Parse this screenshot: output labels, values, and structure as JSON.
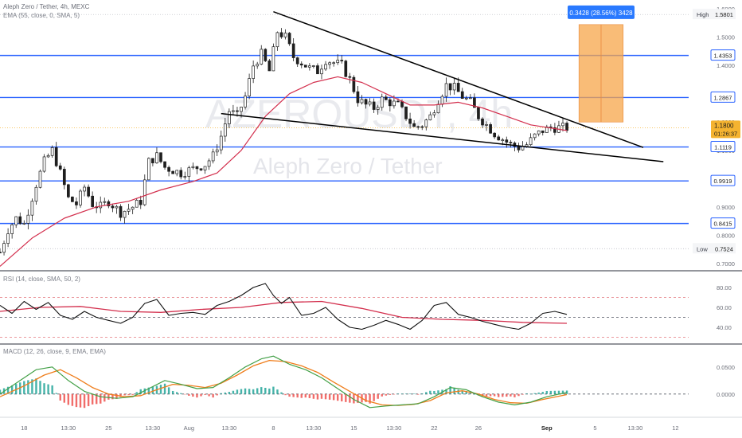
{
  "header": {
    "symbol_line": "Aleph Zero / Tether, 4h, MEXC",
    "ema_line": "EMA (55, close, 0, SMA, 5)",
    "rsi_line": "RSI (14, close, SMA, 50, 2)",
    "macd_line": "MACD (12, 26, close, 9, EMA, EMA)"
  },
  "watermark": {
    "ticker": "AZEROUSDT, 4h",
    "name": "Aleph Zero / Tether"
  },
  "colors": {
    "candle": "#1f1f1f",
    "ema": "#d32f4d",
    "levels": "#2962ff",
    "trendlines": "#000000",
    "target_box": "#f7a54a",
    "price_tag": "#f5b330",
    "macd_line": "#43a047",
    "signal_line": "#ef7d1b",
    "hist_up": "#26a69a",
    "hist_down": "#ef5350"
  },
  "chart_data": [
    {
      "type": "candlestick",
      "title": "Aleph Zero / Tether, 4h, MEXC",
      "x_ticks": [
        "18",
        "13:30",
        "25",
        "13:30",
        "Aug",
        "13:30",
        "8",
        "13:30",
        "15",
        "13:30",
        "22",
        "26",
        "Sep",
        "5",
        "13:30",
        "12"
      ],
      "y_ticks": [
        0.7,
        0.8,
        0.9,
        1.0,
        1.1,
        1.2,
        1.3,
        1.4,
        1.5,
        1.6
      ],
      "ylim": [
        0.68,
        1.62
      ],
      "grid": false,
      "close_path": [
        {
          "d": 0,
          "v": 0.74
        },
        {
          "d": 2,
          "v": 0.82
        },
        {
          "d": 4,
          "v": 0.86
        },
        {
          "d": 6,
          "v": 0.84
        },
        {
          "d": 9,
          "v": 0.98
        },
        {
          "d": 11,
          "v": 1.06
        },
        {
          "d": 13,
          "v": 1.1
        },
        {
          "d": 15,
          "v": 1.02
        },
        {
          "d": 17,
          "v": 0.93
        },
        {
          "d": 19,
          "v": 0.91
        },
        {
          "d": 21,
          "v": 0.97
        },
        {
          "d": 23,
          "v": 0.91
        },
        {
          "d": 25,
          "v": 0.9
        },
        {
          "d": 27,
          "v": 0.92
        },
        {
          "d": 30,
          "v": 0.88
        },
        {
          "d": 33,
          "v": 0.9
        },
        {
          "d": 35,
          "v": 0.92
        },
        {
          "d": 37,
          "v": 1.06
        },
        {
          "d": 39,
          "v": 1.08
        },
        {
          "d": 41,
          "v": 1.04
        },
        {
          "d": 43,
          "v": 1.03
        },
        {
          "d": 45,
          "v": 1.02
        },
        {
          "d": 47,
          "v": 1.03
        },
        {
          "d": 49,
          "v": 1.04
        },
        {
          "d": 51,
          "v": 1.05
        },
        {
          "d": 53,
          "v": 1.08
        },
        {
          "d": 55,
          "v": 1.15
        },
        {
          "d": 57,
          "v": 1.24
        },
        {
          "d": 59,
          "v": 1.22
        },
        {
          "d": 61,
          "v": 1.29
        },
        {
          "d": 63,
          "v": 1.4
        },
        {
          "d": 65,
          "v": 1.44
        },
        {
          "d": 67,
          "v": 1.38
        },
        {
          "d": 69,
          "v": 1.52
        },
        {
          "d": 71,
          "v": 1.5
        },
        {
          "d": 73,
          "v": 1.43
        },
        {
          "d": 75,
          "v": 1.41
        },
        {
          "d": 77,
          "v": 1.39
        },
        {
          "d": 79,
          "v": 1.38
        },
        {
          "d": 81,
          "v": 1.42
        },
        {
          "d": 83,
          "v": 1.41
        },
        {
          "d": 85,
          "v": 1.4
        },
        {
          "d": 87,
          "v": 1.35
        },
        {
          "d": 89,
          "v": 1.28
        },
        {
          "d": 91,
          "v": 1.26
        },
        {
          "d": 93,
          "v": 1.25
        },
        {
          "d": 95,
          "v": 1.28
        },
        {
          "d": 97,
          "v": 1.27
        },
        {
          "d": 99,
          "v": 1.26
        },
        {
          "d": 101,
          "v": 1.22
        },
        {
          "d": 103,
          "v": 1.18
        },
        {
          "d": 105,
          "v": 1.19
        },
        {
          "d": 107,
          "v": 1.22
        },
        {
          "d": 109,
          "v": 1.28
        },
        {
          "d": 111,
          "v": 1.33
        },
        {
          "d": 113,
          "v": 1.32
        },
        {
          "d": 115,
          "v": 1.29
        },
        {
          "d": 117,
          "v": 1.27
        },
        {
          "d": 119,
          "v": 1.22
        },
        {
          "d": 121,
          "v": 1.19
        },
        {
          "d": 123,
          "v": 1.16
        },
        {
          "d": 125,
          "v": 1.14
        },
        {
          "d": 127,
          "v": 1.12
        },
        {
          "d": 129,
          "v": 1.11
        },
        {
          "d": 131,
          "v": 1.12
        },
        {
          "d": 133,
          "v": 1.15
        },
        {
          "d": 135,
          "v": 1.17
        },
        {
          "d": 137,
          "v": 1.18
        },
        {
          "d": 139,
          "v": 1.18
        },
        {
          "d": 141,
          "v": 1.18
        }
      ],
      "ema55_path": [
        {
          "d": 0,
          "v": 0.69
        },
        {
          "d": 8,
          "v": 0.79
        },
        {
          "d": 16,
          "v": 0.86
        },
        {
          "d": 24,
          "v": 0.9
        },
        {
          "d": 32,
          "v": 0.92
        },
        {
          "d": 40,
          "v": 0.96
        },
        {
          "d": 48,
          "v": 0.99
        },
        {
          "d": 54,
          "v": 1.02
        },
        {
          "d": 60,
          "v": 1.1
        },
        {
          "d": 66,
          "v": 1.22
        },
        {
          "d": 72,
          "v": 1.3
        },
        {
          "d": 78,
          "v": 1.34
        },
        {
          "d": 84,
          "v": 1.36
        },
        {
          "d": 90,
          "v": 1.34
        },
        {
          "d": 96,
          "v": 1.3
        },
        {
          "d": 102,
          "v": 1.26
        },
        {
          "d": 108,
          "v": 1.26
        },
        {
          "d": 114,
          "v": 1.27
        },
        {
          "d": 120,
          "v": 1.25
        },
        {
          "d": 126,
          "v": 1.22
        },
        {
          "d": 132,
          "v": 1.19
        },
        {
          "d": 141,
          "v": 1.17
        }
      ],
      "horizontal_levels": [
        1.4353,
        1.2867,
        1.1119,
        0.9919,
        0.8415
      ],
      "trendlines": [
        {
          "from": {
            "d": 68,
            "v": 1.59
          },
          "to": {
            "d": 160,
            "v": 1.11
          }
        },
        {
          "from": {
            "d": 55,
            "v": 1.23
          },
          "to": {
            "d": 165,
            "v": 1.06
          }
        }
      ],
      "target_box": {
        "from": {
          "d": 144,
          "v": 1.2
        },
        "to": {
          "d": 155,
          "v": 1.5444
        },
        "label": "0.3428 (28.56%) 3428"
      },
      "markers": [
        {
          "label": "High",
          "value": "1.5801"
        },
        {
          "label": "Low",
          "value": "0.7524"
        }
      ],
      "level_labels": [
        "1.4353",
        "1.2867",
        "1.1119",
        "0.9919",
        "0.8415"
      ],
      "last_price": {
        "value": "1.1800",
        "countdown": "01:26:37"
      }
    },
    {
      "type": "line",
      "title": "RSI (14, close, SMA, 50, 2)",
      "y_ticks": [
        40.0,
        60.0,
        80.0
      ],
      "ylim": [
        28,
        92
      ],
      "bands": [
        70,
        50,
        30
      ],
      "series": [
        {
          "values": [
            {
              "d": 0,
              "v": 62
            },
            {
              "d": 3,
              "v": 54
            },
            {
              "d": 6,
              "v": 66
            },
            {
              "d": 9,
              "v": 58
            },
            {
              "d": 12,
              "v": 65
            },
            {
              "d": 15,
              "v": 52
            },
            {
              "d": 18,
              "v": 48
            },
            {
              "d": 21,
              "v": 56
            },
            {
              "d": 24,
              "v": 50
            },
            {
              "d": 27,
              "v": 47
            },
            {
              "d": 30,
              "v": 44
            },
            {
              "d": 33,
              "v": 50
            },
            {
              "d": 36,
              "v": 64
            },
            {
              "d": 39,
              "v": 68
            },
            {
              "d": 42,
              "v": 52
            },
            {
              "d": 45,
              "v": 54
            },
            {
              "d": 48,
              "v": 55
            },
            {
              "d": 51,
              "v": 53
            },
            {
              "d": 54,
              "v": 62
            },
            {
              "d": 57,
              "v": 66
            },
            {
              "d": 60,
              "v": 72
            },
            {
              "d": 63,
              "v": 80
            },
            {
              "d": 66,
              "v": 84
            },
            {
              "d": 68,
              "v": 72
            },
            {
              "d": 70,
              "v": 64
            },
            {
              "d": 72,
              "v": 70
            },
            {
              "d": 75,
              "v": 52
            },
            {
              "d": 78,
              "v": 54
            },
            {
              "d": 81,
              "v": 60
            },
            {
              "d": 84,
              "v": 48
            },
            {
              "d": 87,
              "v": 40
            },
            {
              "d": 90,
              "v": 38
            },
            {
              "d": 93,
              "v": 42
            },
            {
              "d": 96,
              "v": 47
            },
            {
              "d": 99,
              "v": 43
            },
            {
              "d": 102,
              "v": 38
            },
            {
              "d": 105,
              "v": 47
            },
            {
              "d": 108,
              "v": 62
            },
            {
              "d": 111,
              "v": 65
            },
            {
              "d": 114,
              "v": 53
            },
            {
              "d": 117,
              "v": 50
            },
            {
              "d": 120,
              "v": 46
            },
            {
              "d": 123,
              "v": 43
            },
            {
              "d": 126,
              "v": 40
            },
            {
              "d": 129,
              "v": 38
            },
            {
              "d": 132,
              "v": 44
            },
            {
              "d": 135,
              "v": 54
            },
            {
              "d": 138,
              "v": 56
            },
            {
              "d": 141,
              "v": 53
            }
          ]
        },
        {
          "values": [
            {
              "d": 0,
              "v": 56
            },
            {
              "d": 10,
              "v": 60
            },
            {
              "d": 20,
              "v": 61
            },
            {
              "d": 30,
              "v": 56
            },
            {
              "d": 40,
              "v": 55
            },
            {
              "d": 50,
              "v": 58
            },
            {
              "d": 60,
              "v": 60
            },
            {
              "d": 70,
              "v": 65
            },
            {
              "d": 80,
              "v": 66
            },
            {
              "d": 90,
              "v": 59
            },
            {
              "d": 100,
              "v": 50
            },
            {
              "d": 110,
              "v": 48
            },
            {
              "d": 120,
              "v": 47
            },
            {
              "d": 130,
              "v": 45
            },
            {
              "d": 141,
              "v": 44
            }
          ]
        }
      ]
    },
    {
      "type": "line",
      "title": "MACD (12, 26, close, 9, EMA, EMA)",
      "y_ticks": [
        0.0,
        0.05
      ],
      "ylim": [
        -0.04,
        0.085
      ],
      "series": [
        {
          "values": [
            {
              "d": 0,
              "v": 0.0
            },
            {
              "d": 5,
              "v": 0.025
            },
            {
              "d": 9,
              "v": 0.045
            },
            {
              "d": 13,
              "v": 0.05
            },
            {
              "d": 17,
              "v": 0.025
            },
            {
              "d": 21,
              "v": 0.005
            },
            {
              "d": 25,
              "v": -0.005
            },
            {
              "d": 29,
              "v": -0.008
            },
            {
              "d": 33,
              "v": -0.005
            },
            {
              "d": 37,
              "v": 0.01
            },
            {
              "d": 41,
              "v": 0.025
            },
            {
              "d": 45,
              "v": 0.018
            },
            {
              "d": 49,
              "v": 0.01
            },
            {
              "d": 53,
              "v": 0.012
            },
            {
              "d": 57,
              "v": 0.03
            },
            {
              "d": 61,
              "v": 0.05
            },
            {
              "d": 65,
              "v": 0.065
            },
            {
              "d": 68,
              "v": 0.07
            },
            {
              "d": 72,
              "v": 0.055
            },
            {
              "d": 76,
              "v": 0.045
            },
            {
              "d": 80,
              "v": 0.03
            },
            {
              "d": 84,
              "v": 0.01
            },
            {
              "d": 88,
              "v": -0.01
            },
            {
              "d": 92,
              "v": -0.025
            },
            {
              "d": 96,
              "v": -0.022
            },
            {
              "d": 100,
              "v": -0.02
            },
            {
              "d": 104,
              "v": -0.018
            },
            {
              "d": 108,
              "v": -0.005
            },
            {
              "d": 112,
              "v": 0.012
            },
            {
              "d": 116,
              "v": 0.008
            },
            {
              "d": 120,
              "v": -0.005
            },
            {
              "d": 124,
              "v": -0.015
            },
            {
              "d": 128,
              "v": -0.02
            },
            {
              "d": 132,
              "v": -0.015
            },
            {
              "d": 136,
              "v": -0.005
            },
            {
              "d": 141,
              "v": 0.003
            }
          ]
        },
        {
          "values": [
            {
              "d": 0,
              "v": -0.005
            },
            {
              "d": 6,
              "v": 0.015
            },
            {
              "d": 11,
              "v": 0.035
            },
            {
              "d": 15,
              "v": 0.045
            },
            {
              "d": 19,
              "v": 0.03
            },
            {
              "d": 23,
              "v": 0.012
            },
            {
              "d": 27,
              "v": 0.0
            },
            {
              "d": 31,
              "v": -0.005
            },
            {
              "d": 35,
              "v": -0.003
            },
            {
              "d": 39,
              "v": 0.008
            },
            {
              "d": 43,
              "v": 0.018
            },
            {
              "d": 47,
              "v": 0.016
            },
            {
              "d": 51,
              "v": 0.012
            },
            {
              "d": 55,
              "v": 0.02
            },
            {
              "d": 59,
              "v": 0.035
            },
            {
              "d": 63,
              "v": 0.052
            },
            {
              "d": 67,
              "v": 0.062
            },
            {
              "d": 71,
              "v": 0.06
            },
            {
              "d": 75,
              "v": 0.052
            },
            {
              "d": 79,
              "v": 0.04
            },
            {
              "d": 83,
              "v": 0.022
            },
            {
              "d": 87,
              "v": 0.005
            },
            {
              "d": 91,
              "v": -0.012
            },
            {
              "d": 95,
              "v": -0.02
            },
            {
              "d": 99,
              "v": -0.021
            },
            {
              "d": 103,
              "v": -0.019
            },
            {
              "d": 107,
              "v": -0.012
            },
            {
              "d": 111,
              "v": 0.002
            },
            {
              "d": 115,
              "v": 0.006
            },
            {
              "d": 119,
              "v": 0.0
            },
            {
              "d": 123,
              "v": -0.01
            },
            {
              "d": 127,
              "v": -0.016
            },
            {
              "d": 131,
              "v": -0.017
            },
            {
              "d": 135,
              "v": -0.01
            },
            {
              "d": 141,
              "v": -0.001
            }
          ]
        }
      ]
    }
  ]
}
